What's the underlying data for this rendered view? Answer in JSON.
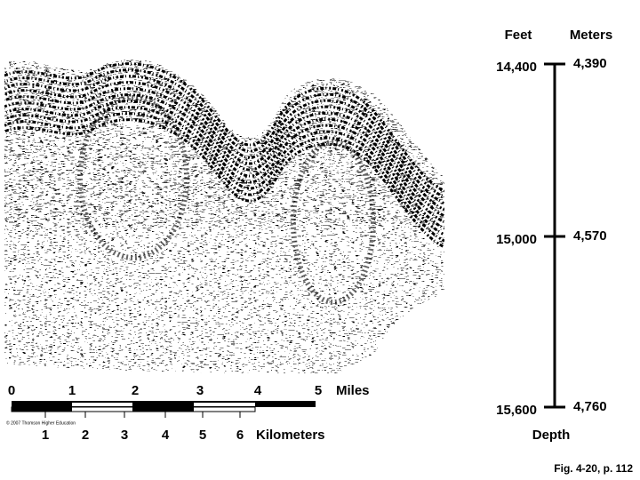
{
  "depth": {
    "headers": [
      "Feet",
      "Meters"
    ],
    "ticks": [
      {
        "feet": "14,400",
        "meters": "4,390"
      },
      {
        "feet": "15,000",
        "meters": "4,570"
      },
      {
        "feet": "15,600",
        "meters": "4,760"
      }
    ],
    "label": "Depth"
  },
  "scale": {
    "miles": [
      "0",
      "1",
      "2",
      "3",
      "4",
      "5"
    ],
    "miles_unit": "Miles",
    "kilometers": [
      "1",
      "2",
      "3",
      "4",
      "5",
      "6"
    ],
    "kilometers_unit": "Kilometers",
    "copyright": "© 2007 Thomson Higher Education"
  },
  "caption": "Fig. 4-20, p. 112"
}
